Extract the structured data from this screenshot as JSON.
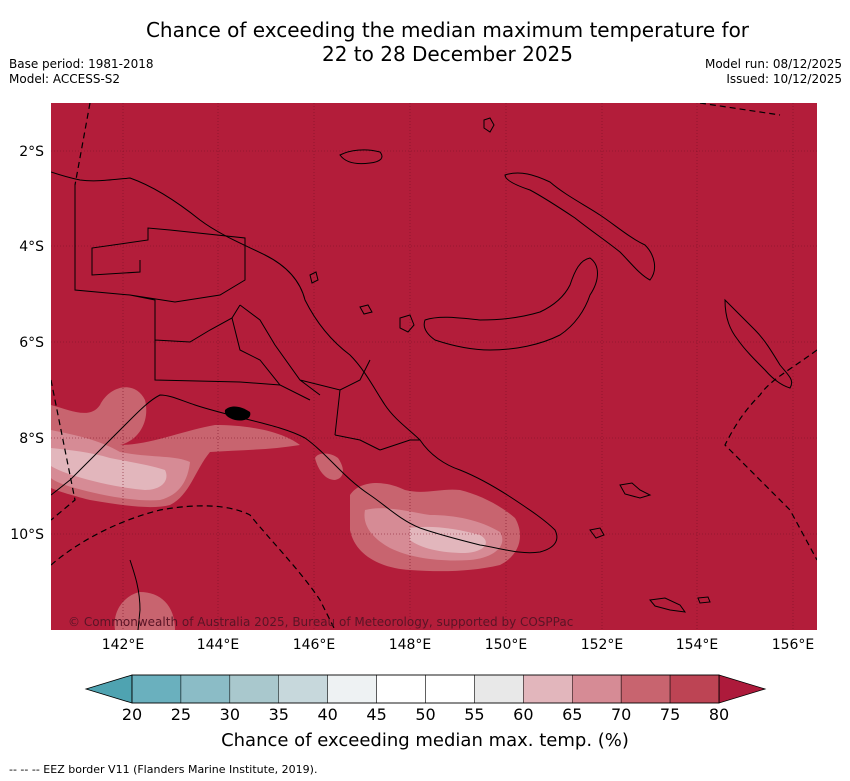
{
  "title": {
    "line1": "Chance of exceeding the median maximum temperature for",
    "line2": "22 to 28 December 2025"
  },
  "meta_left": {
    "base_period": "Base period: 1981-2018",
    "model": "Model: ACCESS-S2"
  },
  "meta_right": {
    "model_run": "Model run: 08/12/2025",
    "issued": "Issued: 10/12/2025"
  },
  "map": {
    "base_color": "#b31d3a",
    "lat_labels": [
      "2°S",
      "4°S",
      "6°S",
      "8°S",
      "10°S"
    ],
    "lon_labels": [
      "142°E",
      "144°E",
      "146°E",
      "148°E",
      "150°E",
      "152°E",
      "154°E",
      "156°E"
    ],
    "copyright": "© Commonwealth of Australia 2025, Bureau of Meteorology, supported by COSPPac"
  },
  "colorbar": {
    "labels": [
      "20",
      "25",
      "30",
      "35",
      "40",
      "45",
      "50",
      "55",
      "60",
      "65",
      "70",
      "75",
      "80"
    ],
    "colors": [
      "#6ab0be",
      "#8bbcc6",
      "#a9c8cd",
      "#c7d8dc",
      "#eef2f3",
      "#ffffff",
      "#ffffff",
      "#e8e8e8",
      "#e2b6bc",
      "#d68b95",
      "#c8646f",
      "#bd4454"
    ],
    "low_arrow_color": "#4fa3b1",
    "high_arrow_color": "#ad1a3b",
    "title": "Chance of exceeding median max. temp. (%)"
  },
  "footnote": "--  --  -- EEZ border V11 (Flanders Marine Institute, 2019)."
}
